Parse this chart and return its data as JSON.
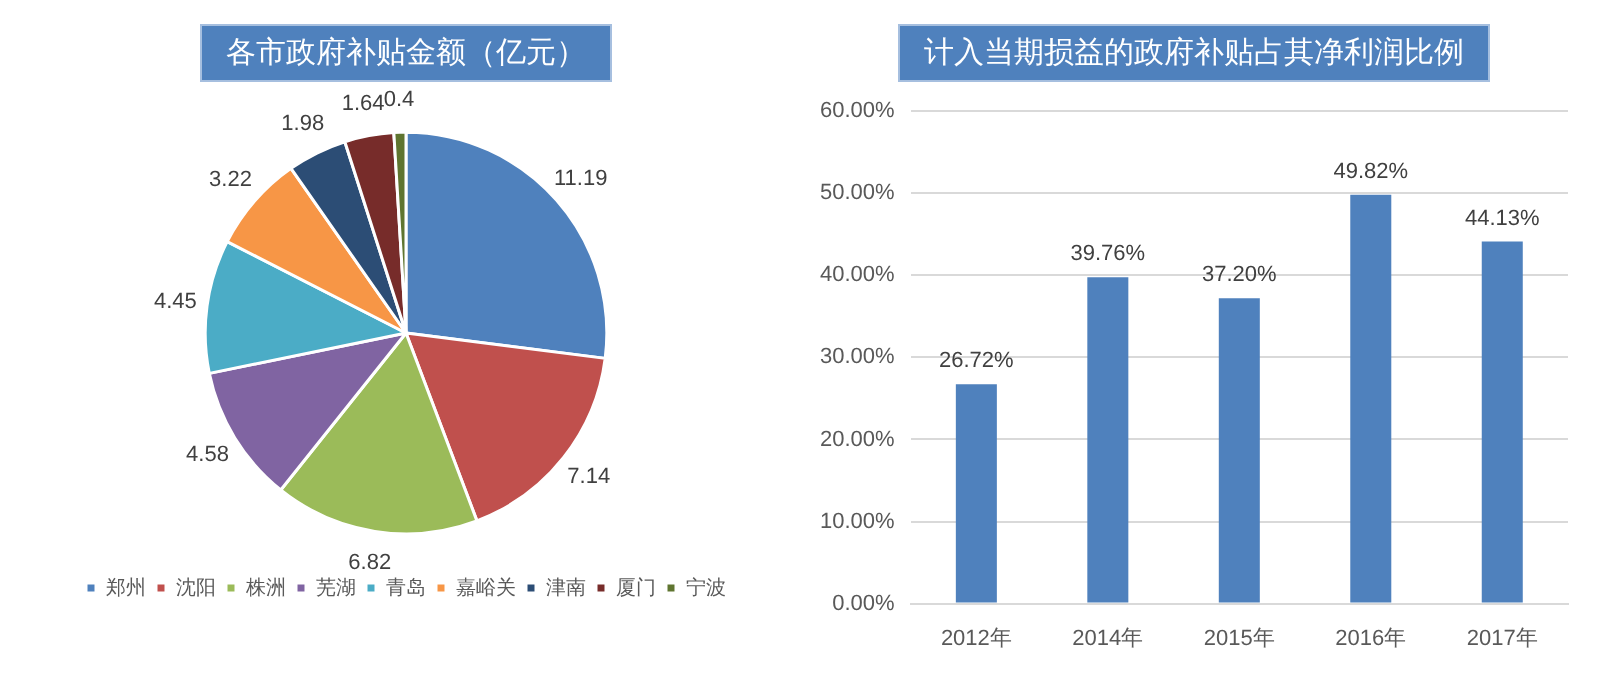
{
  "chart_data": [
    {
      "type": "pie",
      "title": "各市政府补贴金额（亿元）",
      "categories": [
        "郑州",
        "沈阳",
        "株洲",
        "芜湖",
        "青岛",
        "嘉峪关",
        "津南",
        "厦门",
        "宁波"
      ],
      "values": [
        11.19,
        7.14,
        6.82,
        4.58,
        4.45,
        3.22,
        1.98,
        1.64,
        0.4
      ],
      "colors": [
        "#4f81bd",
        "#c0504d",
        "#9bbb59",
        "#8064a2",
        "#4bacc6",
        "#f79646",
        "#2c4d75",
        "#772c2a",
        "#5f7530"
      ],
      "data_labels": true,
      "legend": "bottom"
    },
    {
      "type": "bar",
      "title": "计入当期损益的政府补贴占其净利润比例",
      "categories": [
        "2012年",
        "2014年",
        "2015年",
        "2016年",
        "2017年"
      ],
      "values": [
        26.72,
        39.76,
        37.2,
        49.82,
        44.13
      ],
      "value_labels": [
        "26.72%",
        "39.76%",
        "37.20%",
        "49.82%",
        "44.13%"
      ],
      "color": "#4f81bd",
      "ylim": [
        0,
        60
      ],
      "yticks": [
        {
          "value": 0,
          "label": "0.00%"
        },
        {
          "value": 10,
          "label": "10.00%"
        },
        {
          "value": 20,
          "label": "20.00%"
        },
        {
          "value": 30,
          "label": "30.00%"
        },
        {
          "value": 40,
          "label": "40.00%"
        },
        {
          "value": 50,
          "label": "50.00%"
        },
        {
          "value": 60,
          "label": "60.00%"
        }
      ],
      "grid": "y",
      "legend": false
    }
  ]
}
